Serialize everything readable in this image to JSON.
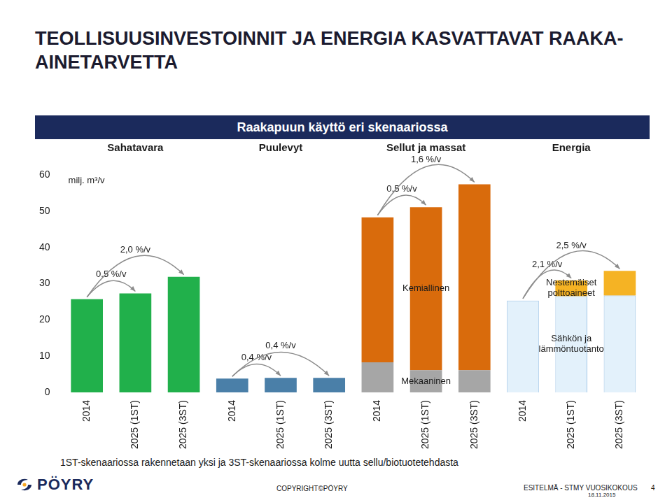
{
  "title": "TEOLLISUUSINVESTOINNIT JA ENERGIA KASVATTAVAT RAAKA-AINETARVETTA",
  "chart_data": {
    "type": "bar",
    "title": "Raakapuun käyttö eri skenaariossa",
    "y_label": "milj. m³/v",
    "stacked": true,
    "grid": false,
    "data_labels": false,
    "categories": [
      "2014",
      "2025 (1ST)",
      "2025 (3ST)",
      "2014",
      "2025 (1ST)",
      "2025 (3ST)",
      "2014",
      "2025 (1ST)",
      "2025 (3ST)",
      "2014",
      "2025 (1ST)",
      "2025 (3ST)"
    ],
    "groups": [
      "Sahatavara",
      "Puulevyt",
      "Sellut ja massat",
      "Energia"
    ],
    "series": [
      {
        "name": "Sahatavara",
        "color": "#21b04b",
        "values": [
          25.7,
          27.3,
          31.9,
          null,
          null,
          null,
          null,
          null,
          null,
          null,
          null,
          null
        ]
      },
      {
        "name": "Puulevyt",
        "color": "#4a7fa8",
        "values": [
          null,
          null,
          null,
          3.8,
          4.0,
          4.0,
          null,
          null,
          null,
          null,
          null,
          null
        ]
      },
      {
        "name": "Mekaaninen",
        "color": "#a6a6a6",
        "values": [
          null,
          null,
          null,
          null,
          null,
          null,
          8.3,
          6.1,
          6.1,
          null,
          null,
          null
        ]
      },
      {
        "name": "Kemiallinen",
        "color": "#d96b0c",
        "values": [
          null,
          null,
          null,
          null,
          null,
          null,
          40.0,
          45.0,
          51.3,
          null,
          null,
          null
        ]
      },
      {
        "name": "Sähkön ja lämmöntuotanto",
        "color": "#e3f1fb",
        "values": [
          null,
          null,
          null,
          null,
          null,
          null,
          null,
          null,
          null,
          25.3,
          26.5,
          26.7
        ]
      },
      {
        "name": "Nestemäiset polttoaineet",
        "color": "#f5b324",
        "values": [
          null,
          null,
          null,
          null,
          null,
          null,
          null,
          null,
          null,
          null,
          4.4,
          6.8
        ]
      }
    ],
    "growth_labels": [
      null,
      "0,5 %/v",
      "2,0 %/v",
      null,
      "0,4 %/v",
      "0,4 %/v",
      null,
      "0,5 %/v",
      "1,6 %/v",
      null,
      "2,1 %/v",
      "2,5 %/v"
    ],
    "ylim": [
      0,
      60
    ],
    "yticks": [
      0,
      10,
      20,
      30,
      40,
      50,
      60
    ],
    "footnote": "1ST-skenaariossa rakennetaan yksi ja 3ST-skenaariossa kolme uutta sellu/biotuotetehdasta"
  },
  "footer": {
    "logo": "PÖYRY",
    "copyright": "COPYRIGHT©PÖYRY",
    "event": "ESITELMÄ - STMY VUOSIKOKOUS",
    "page": 4,
    "date": "18.11.2015"
  }
}
